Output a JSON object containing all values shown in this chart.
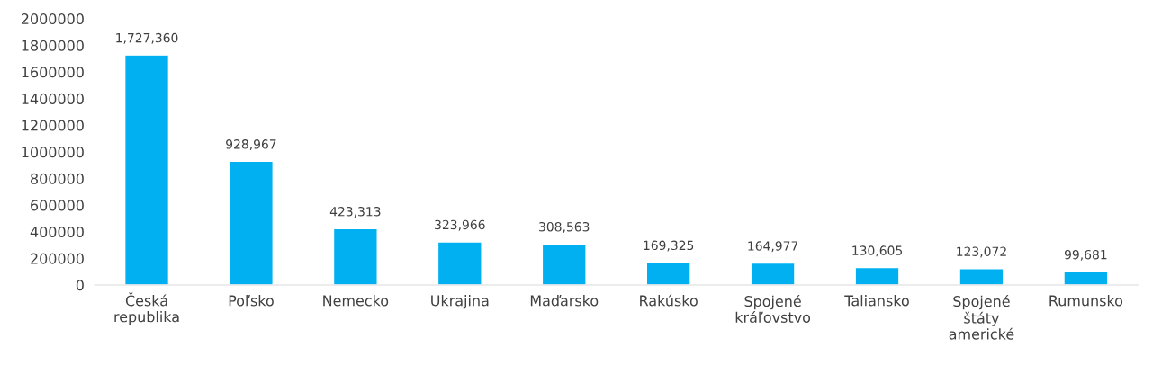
{
  "chart_data": {
    "type": "bar",
    "categories": [
      "Česká\nrepublika",
      "Poľsko",
      "Nemecko",
      "Ukrajina",
      "Maďarsko",
      "Rakúsko",
      "Spojené\nkráľovstvo",
      "Taliansko",
      "Spojené\nštáty\namerické",
      "Rumunsko"
    ],
    "values": [
      1727360,
      928967,
      423313,
      323966,
      308563,
      169325,
      164977,
      130605,
      123072,
      99681
    ],
    "value_labels": [
      "1,727,360",
      "928,967",
      "423,313",
      "323,966",
      "308,563",
      "169,325",
      "164,977",
      "130,605",
      "123,072",
      "99,681"
    ],
    "color": "#00b0f0",
    "ylim": [
      0,
      2000000
    ],
    "yticks": [
      0,
      200000,
      400000,
      600000,
      800000,
      1000000,
      1200000,
      1400000,
      1600000,
      1800000,
      2000000
    ],
    "grid": false,
    "legend": false
  }
}
